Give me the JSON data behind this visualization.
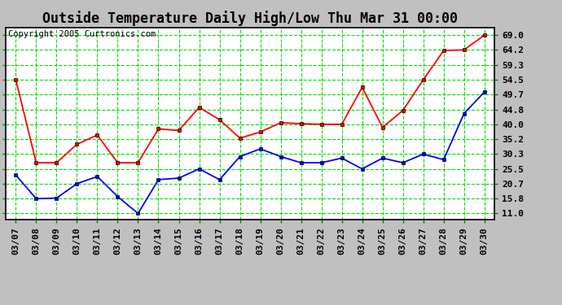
{
  "title": "Outside Temperature Daily High/Low Thu Mar 31 00:00",
  "copyright": "Copyright 2005 Curtronics.com",
  "x_labels": [
    "03/07",
    "03/08",
    "03/09",
    "03/10",
    "03/11",
    "03/12",
    "03/13",
    "03/14",
    "03/15",
    "03/16",
    "03/17",
    "03/18",
    "03/19",
    "03/20",
    "03/21",
    "03/22",
    "03/23",
    "03/24",
    "03/25",
    "03/26",
    "03/27",
    "03/28",
    "03/29",
    "03/30"
  ],
  "high_values": [
    54.5,
    27.5,
    27.5,
    33.5,
    36.5,
    27.5,
    27.5,
    38.5,
    38.0,
    45.5,
    41.5,
    35.5,
    37.5,
    40.5,
    40.2,
    40.0,
    40.0,
    52.0,
    39.0,
    44.5,
    54.5,
    64.0,
    64.2,
    69.0
  ],
  "low_values": [
    23.5,
    15.8,
    16.0,
    20.7,
    23.0,
    16.5,
    11.0,
    22.0,
    22.5,
    25.5,
    22.0,
    29.5,
    32.0,
    29.5,
    27.5,
    27.5,
    29.0,
    25.5,
    29.0,
    27.5,
    30.3,
    28.5,
    43.5,
    50.5
  ],
  "high_color": "#ff0000",
  "low_color": "#0000ff",
  "bg_color": "#c0c0c0",
  "plot_bg_color": "#ffffff",
  "grid_color": "#00dd00",
  "border_color": "#000000",
  "yticks": [
    11.0,
    15.8,
    20.7,
    25.5,
    30.3,
    35.2,
    40.0,
    44.8,
    49.7,
    54.5,
    59.3,
    64.2,
    69.0
  ],
  "ylim": [
    9.0,
    71.5
  ],
  "title_fontsize": 12,
  "copyright_fontsize": 7.5,
  "tick_fontsize": 8,
  "marker": "s",
  "markersize": 3,
  "linewidth": 1.3
}
